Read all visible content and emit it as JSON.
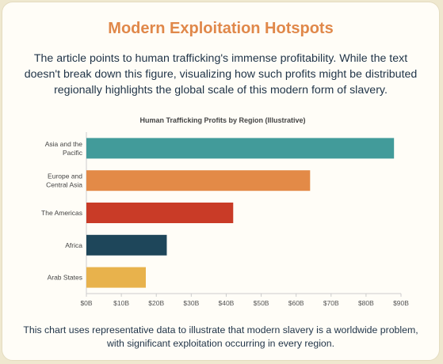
{
  "page": {
    "title": "Modern Exploitation Hotspots",
    "intro": "The article points to human trafficking's immense profitability. While the text doesn't break down this figure, visualizing how such profits might be distributed regionally highlights the global scale of this modern form of slavery.",
    "footer": "This chart uses representative data to illustrate that modern slavery is a worldwide problem, with significant exploitation occurring in every region."
  },
  "chart_data": {
    "type": "bar",
    "orientation": "horizontal",
    "title": "Human Trafficking Profits by Region (Illustrative)",
    "categories": [
      [
        "Asia and the",
        "Pacific"
      ],
      [
        "Europe and",
        "Central Asia"
      ],
      [
        "The Americas"
      ],
      [
        "Africa"
      ],
      [
        "Arab States"
      ]
    ],
    "values": [
      88,
      64,
      42,
      23,
      17
    ],
    "unit": "billion USD",
    "colors": [
      "#429b9a",
      "#e38a47",
      "#c93b27",
      "#1e465a",
      "#e8b24c"
    ],
    "xlim": [
      0,
      90
    ],
    "xticks": [
      "$0B",
      "$10B",
      "$20B",
      "$30B",
      "$40B",
      "$50B",
      "$60B",
      "$70B",
      "$80B",
      "$90B"
    ],
    "grid": false,
    "legend": "none"
  }
}
